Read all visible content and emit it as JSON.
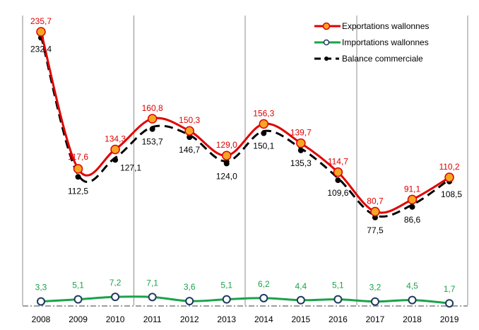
{
  "chart_data": {
    "type": "line",
    "title": "",
    "xlabel": "",
    "ylabel": "",
    "ylim": [
      0,
      235.7
    ],
    "categories": [
      "2008",
      "2009",
      "2010",
      "2011",
      "2012",
      "2013",
      "2014",
      "2015",
      "2016",
      "2017",
      "2018",
      "2019"
    ],
    "series": [
      {
        "name": "Exportations wallonnes",
        "color": "#e00000",
        "values": [
          235.7,
          117.6,
          134.3,
          160.8,
          150.3,
          129.0,
          156.3,
          139.7,
          114.7,
          80.7,
          91.1,
          110.2
        ],
        "labels": [
          "235,7",
          "117,6",
          "134,3",
          "160,8",
          "150,3",
          "129,0",
          "156,3",
          "139,7",
          "114,7",
          "80,7",
          "91,1",
          "110,2"
        ]
      },
      {
        "name": "Importations wallonnes",
        "color": "#1aa24a",
        "values": [
          3.3,
          5.1,
          7.2,
          7.1,
          3.6,
          5.1,
          6.2,
          4.4,
          5.1,
          3.2,
          4.5,
          1.7
        ],
        "labels": [
          "3,3",
          "5,1",
          "7,2",
          "7,1",
          "3,6",
          "5,1",
          "6,2",
          "4,4",
          "5,1",
          "3,2",
          "4,5",
          "1,7"
        ]
      },
      {
        "name": "Balance commerciale",
        "color": "#000000",
        "values": [
          232.4,
          112.5,
          127.1,
          153.7,
          146.7,
          124.0,
          150.1,
          135.3,
          109.6,
          77.5,
          86.6,
          108.5
        ],
        "labels": [
          "232,4",
          "112,5",
          "127,1",
          "153,7",
          "146,7",
          "124,0",
          "150,1",
          "135,3",
          "109,6",
          "77,5",
          "86,6",
          "108,5"
        ]
      }
    ],
    "grid": "vertical every 3 years",
    "legend": "top-right"
  }
}
